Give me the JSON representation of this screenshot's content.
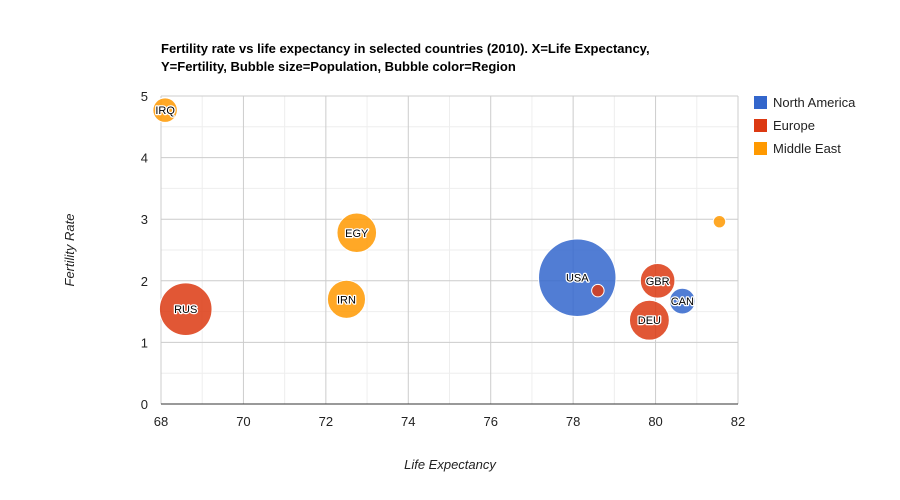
{
  "chart_data": {
    "type": "scatter",
    "subtype": "bubble",
    "title_lines": [
      "Fertility rate vs life expectancy in selected countries (2010). X=Life Expectancy,",
      "Y=Fertility, Bubble size=Population, Bubble color=Region"
    ],
    "xlabel": "Life Expectancy",
    "ylabel": "Fertility Rate",
    "xlim": [
      68,
      82
    ],
    "ylim": [
      0,
      5
    ],
    "x_ticks": [
      "68",
      "70",
      "72",
      "74",
      "76",
      "78",
      "80",
      "82"
    ],
    "y_ticks": [
      "0",
      "1",
      "2",
      "3",
      "4",
      "5"
    ],
    "grid": true,
    "legend_position": "right",
    "legend": [
      {
        "name": "North America",
        "color": "#3366cc"
      },
      {
        "name": "Europe",
        "color": "#dc3912"
      },
      {
        "name": "Middle East",
        "color": "#ff9900"
      }
    ],
    "points": [
      {
        "label": "IRQ",
        "x": 68.1,
        "y": 4.77,
        "size": 31,
        "region": "Middle East"
      },
      {
        "label": "EGY",
        "x": 72.75,
        "y": 2.78,
        "size": 81,
        "region": "Middle East"
      },
      {
        "label": "IRN",
        "x": 72.5,
        "y": 1.7,
        "size": 75,
        "region": "Middle East"
      },
      {
        "label": "RUS",
        "x": 68.6,
        "y": 1.54,
        "size": 143,
        "region": "Europe"
      },
      {
        "label": "USA",
        "x": 78.1,
        "y": 2.05,
        "size": 310,
        "region": "North America"
      },
      {
        "label": "",
        "x": 78.6,
        "y": 1.84,
        "size": 8,
        "region": "Europe"
      },
      {
        "label": "GBR",
        "x": 80.05,
        "y": 2.0,
        "size": 62,
        "region": "Europe"
      },
      {
        "label": "DEU",
        "x": 79.85,
        "y": 1.36,
        "size": 82,
        "region": "Europe"
      },
      {
        "label": "CAN",
        "x": 80.65,
        "y": 1.67,
        "size": 34,
        "region": "North America"
      },
      {
        "label": "",
        "x": 81.55,
        "y": 2.96,
        "size": 8,
        "region": "Middle East"
      }
    ]
  }
}
